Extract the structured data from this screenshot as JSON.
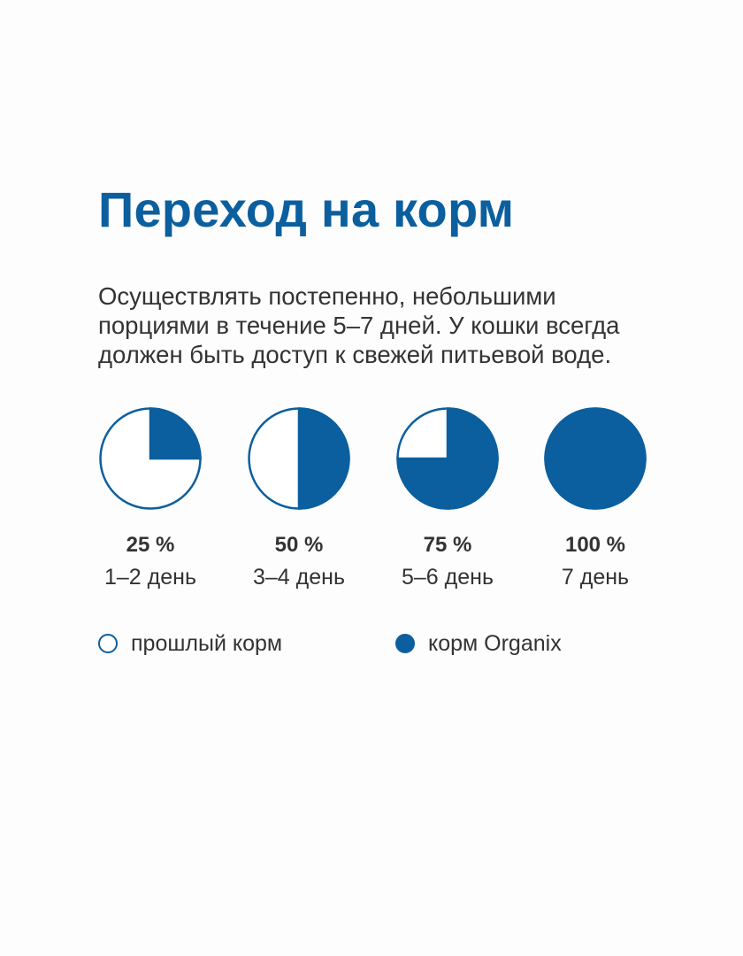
{
  "title": "Переход на корм",
  "description": "Осуществлять постепенно, небольшими порциями в течение 5–7 дней. У кошки всегда должен быть доступ к свежей питьевой воде.",
  "colors": {
    "accent": "#0b5f9e",
    "text": "#333333",
    "background": "#fdfdfd"
  },
  "stages": [
    {
      "fraction": 0.25,
      "percent_label": "25 %",
      "days_label": "1–2 день"
    },
    {
      "fraction": 0.5,
      "percent_label": "50 %",
      "days_label": "3–4 день"
    },
    {
      "fraction": 0.75,
      "percent_label": "75 %",
      "days_label": "5–6 день"
    },
    {
      "fraction": 1.0,
      "percent_label": "100 %",
      "days_label": "7 день"
    }
  ],
  "legend": {
    "old_food": "прошлый корм",
    "new_food": "корм Organix"
  }
}
